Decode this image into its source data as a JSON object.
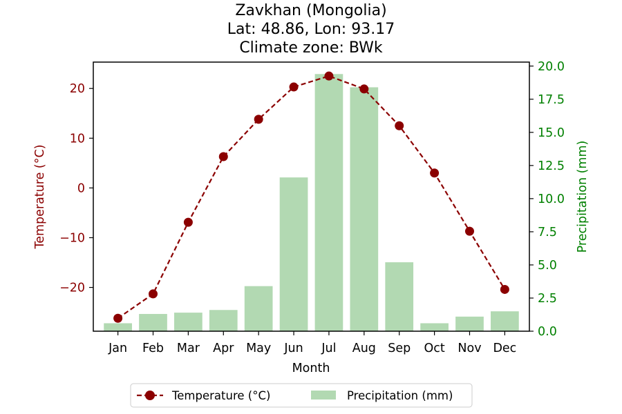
{
  "chart_data": {
    "type": "bar+line",
    "title_lines": [
      "Zavkhan (Mongolia)",
      "Lat: 48.86, Lon: 93.17",
      "Climate zone: BWk"
    ],
    "xlabel": "Month",
    "ylabel_left": "Temperature (°C)",
    "ylabel_right": "Precipitation (mm)",
    "categories": [
      "Jan",
      "Feb",
      "Mar",
      "Apr",
      "May",
      "Jun",
      "Jul",
      "Aug",
      "Sep",
      "Oct",
      "Nov",
      "Dec"
    ],
    "temperature": {
      "name": "Temperature (°C)",
      "values": [
        -26.2,
        -21.3,
        -6.9,
        6.3,
        13.8,
        20.3,
        22.5,
        19.9,
        12.5,
        3.0,
        -8.7,
        -20.4
      ],
      "color": "#8b0000"
    },
    "precipitation": {
      "name": "Precipitation (mm)",
      "values": [
        0.6,
        1.3,
        1.4,
        1.6,
        3.4,
        11.6,
        19.4,
        18.4,
        5.2,
        0.6,
        1.1,
        1.5
      ],
      "color": "#b2d9b2"
    },
    "ylim_left": [
      -28.8,
      25.3
    ],
    "ylim_right": [
      0,
      20.3
    ],
    "yticks_left": [
      -20,
      -10,
      0,
      10,
      20
    ],
    "yticks_right": [
      0.0,
      2.5,
      5.0,
      7.5,
      10.0,
      12.5,
      15.0,
      17.5,
      20.0
    ],
    "left_axis_color": "#8b0000",
    "right_axis_color": "#008000",
    "legend_position": "bottom-center"
  }
}
